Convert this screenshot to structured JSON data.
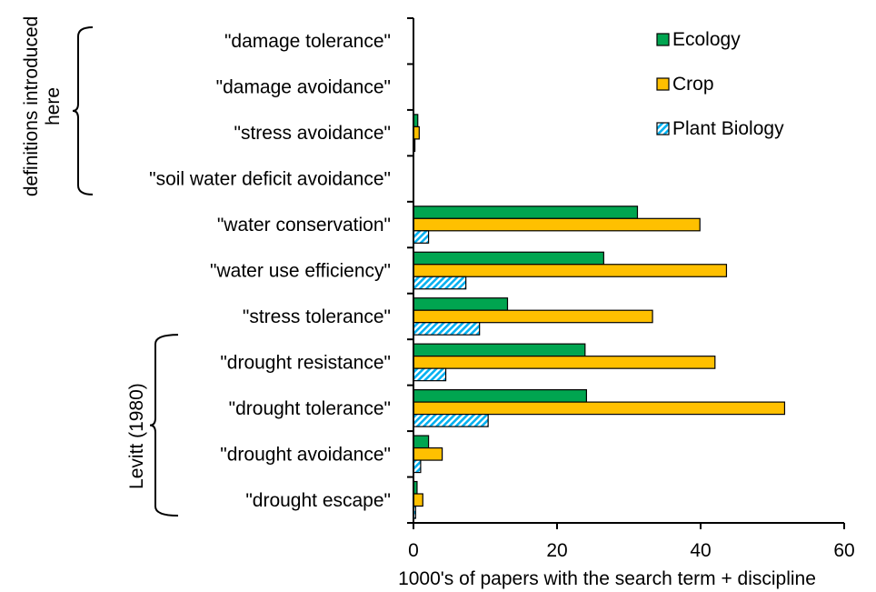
{
  "chart_data": {
    "type": "bar",
    "orientation": "horizontal",
    "categories": [
      "\"damage tolerance\"",
      "\"damage avoidance\"",
      "\"stress avoidance\"",
      "\"soil water deficit avoidance\"",
      "\"water conservation\"",
      "\"water use efficiency\"",
      "\"stress tolerance\"",
      "\"drought resistance\"",
      "\"drought tolerance\"",
      "\"drought avoidance\"",
      "\"drought escape\""
    ],
    "series": [
      {
        "name": "Ecology",
        "color": "#00a550",
        "pattern": "solid",
        "values": [
          0,
          0,
          0.6,
          0,
          31.2,
          26.5,
          13.1,
          23.9,
          24.1,
          2.1,
          0.5
        ]
      },
      {
        "name": "Crop",
        "color": "#ffc000",
        "pattern": "solid",
        "values": [
          0,
          0,
          0.8,
          0,
          39.9,
          43.6,
          33.3,
          42.0,
          51.7,
          4.0,
          1.3
        ]
      },
      {
        "name": "Plant Biology",
        "color": "#00b0f0",
        "pattern": "diagonal-hatch",
        "values": [
          0,
          0,
          0.2,
          0,
          2.1,
          7.3,
          9.2,
          4.5,
          10.4,
          1.0,
          0.3
        ]
      }
    ],
    "xlabel": "1000's of papers with the search term + discipline",
    "ylabel": "",
    "xlim": [
      0,
      60
    ],
    "xticks": [
      "0",
      "20",
      "40",
      "60"
    ],
    "grid": false,
    "legend_position": "top-right",
    "group_annotations": [
      {
        "label_lines": [
          "definitions introduced",
          "here"
        ],
        "first_category": 0,
        "last_category": 3
      },
      {
        "label_lines": [
          "Levitt (1980)"
        ],
        "first_category": 7,
        "last_category": 10
      }
    ]
  }
}
